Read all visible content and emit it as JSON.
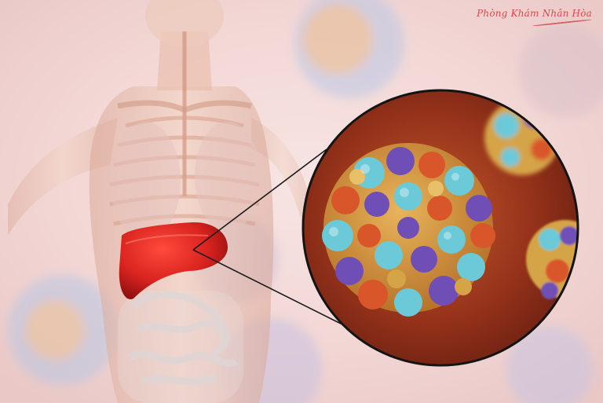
{
  "image": {
    "subject": "liver and hepatitis virus illustration",
    "watermark": "Phòng Khám Nhân Hòa"
  },
  "colors": {
    "background": "#f4dada",
    "organ_liver": "#d8231f",
    "virus_blue": "#6cc9d8",
    "virus_orange": "#d5a447",
    "virus_purple": "#6f4fb6",
    "virus_red": "#d9562a",
    "inset_background": "#8a2a12",
    "watermark": "#d24b4b"
  },
  "icons": {
    "liver": "liver-icon",
    "virus": "virus-icon",
    "magnifier": "magnifier-circle-icon"
  }
}
